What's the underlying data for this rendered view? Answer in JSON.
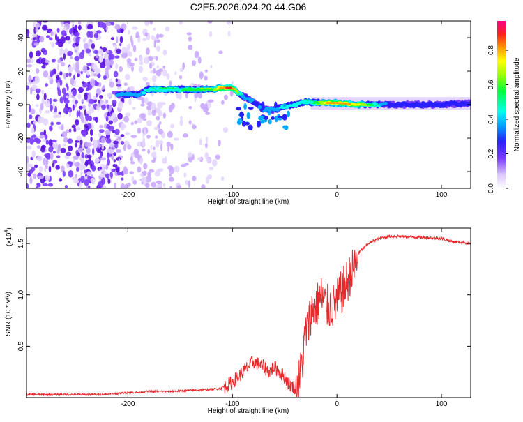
{
  "title": "C2E5.2026.024.20.44.G06",
  "chart_data": [
    {
      "type": "heatmap",
      "title": "C2E5.2026.024.20.44.G06",
      "xlabel": "Height of straight line (km)",
      "ylabel": "Frequency (Hz)",
      "xlim": [
        -297,
        128
      ],
      "ylim": [
        -50,
        50
      ],
      "xticks": [
        -200,
        -100,
        0,
        100
      ],
      "yticks": [
        -40,
        -20,
        0,
        20,
        40
      ],
      "colorbar": {
        "label": "Normalized spectral amplitude",
        "range": [
          0.0,
          0.97
        ],
        "ticks": [
          0.0,
          0.2,
          0.4,
          0.6,
          0.8
        ],
        "tick_labels": [
          "0.0",
          "0.2",
          "0.4",
          "0.6",
          "0.8"
        ]
      },
      "ridge": {
        "x": [
          -210,
          -200,
          -190,
          -180,
          -160,
          -140,
          -120,
          -110,
          -100,
          -90,
          -80,
          -70,
          -60,
          -50,
          -40,
          -30,
          -20,
          -10,
          0,
          20,
          50,
          80,
          100,
          128
        ],
        "freq": [
          6,
          6,
          6,
          9,
          9,
          9,
          9,
          10,
          10,
          5,
          2,
          -3,
          -3,
          -1,
          0,
          2,
          1,
          1,
          1,
          0,
          0,
          0,
          0,
          1
        ],
        "amplitude": [
          0.4,
          0.45,
          0.4,
          0.5,
          0.55,
          0.6,
          0.65,
          0.9,
          0.95,
          0.4,
          0.35,
          0.35,
          0.4,
          0.5,
          0.45,
          0.5,
          0.6,
          0.85,
          0.9,
          0.8,
          0.3,
          0.3,
          0.3,
          0.3
        ]
      }
    },
    {
      "type": "line",
      "xlabel": "Height of straight line (km)",
      "ylabel": "SNR (10 * v/v)",
      "yscale_label": "(x10",
      "yscale_exp": "4",
      "xlim": [
        -297,
        128
      ],
      "ylim": [
        0.0,
        1.65
      ],
      "xticks": [
        -200,
        -100,
        0,
        100
      ],
      "yticks": [
        0.5,
        1.0,
        1.5
      ],
      "ytick_labels": [
        "0.5",
        "1.0",
        "1.5"
      ],
      "series": [
        {
          "name": "SNR",
          "color": "#e8292b",
          "x": [
            -297,
            -270,
            -250,
            -230,
            -210,
            -200,
            -190,
            -180,
            -160,
            -140,
            -120,
            -110,
            -100,
            -90,
            -80,
            -70,
            -65,
            -60,
            -55,
            -50,
            -45,
            -40,
            -38,
            -35,
            -32,
            -30,
            -28,
            -25,
            -20,
            -15,
            -10,
            -5,
            0,
            5,
            10,
            15,
            20,
            25,
            30,
            40,
            50,
            60,
            80,
            100,
            110,
            120,
            128
          ],
          "values": [
            0.03,
            0.03,
            0.03,
            0.03,
            0.04,
            0.05,
            0.05,
            0.06,
            0.06,
            0.07,
            0.08,
            0.09,
            0.15,
            0.25,
            0.35,
            0.3,
            0.25,
            0.3,
            0.25,
            0.2,
            0.12,
            0.1,
            0.15,
            0.3,
            0.5,
            0.7,
            0.75,
            0.9,
            0.95,
            1.05,
            0.95,
            0.95,
            1.0,
            1.1,
            1.2,
            1.3,
            1.4,
            1.45,
            1.5,
            1.55,
            1.57,
            1.57,
            1.56,
            1.55,
            1.52,
            1.51,
            1.5
          ]
        }
      ]
    }
  ]
}
